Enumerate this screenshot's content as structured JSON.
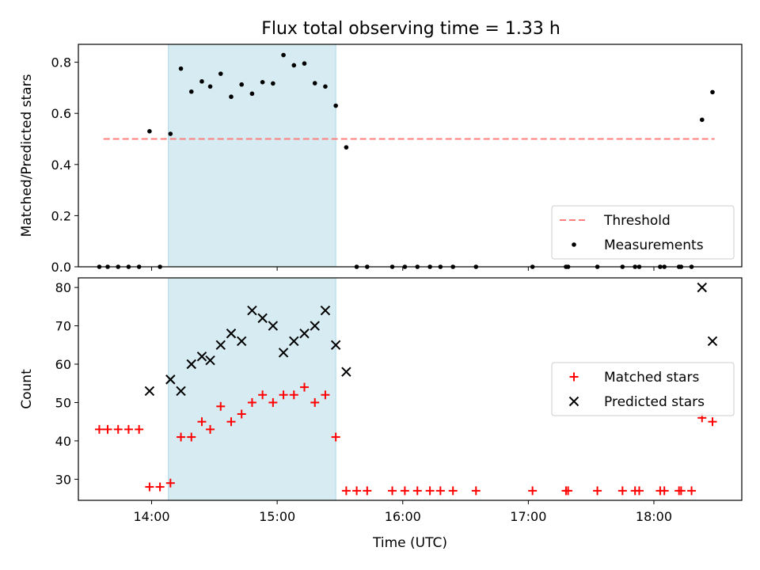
{
  "title": "Flux total observing time = 1.33 h",
  "colors": {
    "threshold": "#ff7f7f",
    "measurement": "#000000",
    "matched": "#ff0000",
    "predicted": "#000000",
    "span_fill": "#add8e6"
  },
  "chart_data": [
    {
      "type": "scatter",
      "panel": "top",
      "title": "Flux total observing time = 1.33 h",
      "xlabel": "",
      "ylabel": "Matched/Predicted stars",
      "xlim": [
        "13:25",
        "18:42"
      ],
      "ylim": [
        0.0,
        0.87
      ],
      "yticks": [
        "0.0",
        "0.2",
        "0.4",
        "0.6",
        "0.8"
      ],
      "legend_position": "lower right",
      "highlight_span": [
        "14:08",
        "15:28"
      ],
      "threshold": {
        "name": "Threshold",
        "value": 0.5,
        "x_range": [
          "13:37",
          "18:29"
        ]
      },
      "series": [
        {
          "name": "Measurements",
          "marker": "dot",
          "points": [
            [
              "13:35",
              0.0
            ],
            [
              "13:39",
              0.0
            ],
            [
              "13:44",
              0.0
            ],
            [
              "13:49",
              0.0
            ],
            [
              "13:54",
              0.0
            ],
            [
              "13:59",
              0.53
            ],
            [
              "14:04",
              0.0
            ],
            [
              "14:09",
              0.52
            ],
            [
              "14:14",
              0.775
            ],
            [
              "14:19",
              0.685
            ],
            [
              "14:24",
              0.725
            ],
            [
              "14:28",
              0.705
            ],
            [
              "14:33",
              0.755
            ],
            [
              "14:38",
              0.665
            ],
            [
              "14:43",
              0.713
            ],
            [
              "14:48",
              0.677
            ],
            [
              "14:53",
              0.722
            ],
            [
              "14:58",
              0.717
            ],
            [
              "15:03",
              0.828
            ],
            [
              "15:08",
              0.788
            ],
            [
              "15:13",
              0.795
            ],
            [
              "15:18",
              0.718
            ],
            [
              "15:23",
              0.705
            ],
            [
              "15:28",
              0.63
            ],
            [
              "15:33",
              0.467
            ],
            [
              "15:38",
              0.0
            ],
            [
              "15:43",
              0.0
            ],
            [
              "15:55",
              0.0
            ],
            [
              "16:01",
              0.0
            ],
            [
              "16:07",
              0.0
            ],
            [
              "16:13",
              0.0
            ],
            [
              "16:18",
              0.0
            ],
            [
              "16:24",
              0.0
            ],
            [
              "16:35",
              0.0
            ],
            [
              "17:02",
              0.0
            ],
            [
              "17:18",
              0.0
            ],
            [
              "17:19",
              0.0
            ],
            [
              "17:33",
              0.0
            ],
            [
              "17:45",
              0.0
            ],
            [
              "17:51",
              0.0
            ],
            [
              "17:53",
              0.0
            ],
            [
              "18:03",
              0.0
            ],
            [
              "18:05",
              0.0
            ],
            [
              "18:12",
              0.0
            ],
            [
              "18:13",
              0.0
            ],
            [
              "18:18",
              0.0
            ],
            [
              "18:23",
              0.575
            ],
            [
              "18:28",
              0.683
            ]
          ]
        }
      ]
    },
    {
      "type": "scatter",
      "panel": "bottom",
      "xlabel": "Time (UTC)",
      "ylabel": "Count",
      "xlim": [
        "13:25",
        "18:42"
      ],
      "ylim": [
        24.5,
        82.5
      ],
      "yticks": [
        "30",
        "40",
        "50",
        "60",
        "70",
        "80"
      ],
      "xticks": [
        "14:00",
        "15:00",
        "16:00",
        "17:00",
        "18:00"
      ],
      "legend_position": "center right",
      "highlight_span": [
        "14:08",
        "15:28"
      ],
      "series": [
        {
          "name": "Matched stars",
          "marker": "plus",
          "points": [
            [
              "13:35",
              43
            ],
            [
              "13:39",
              43
            ],
            [
              "13:44",
              43
            ],
            [
              "13:49",
              43
            ],
            [
              "13:54",
              43
            ],
            [
              "13:59",
              28
            ],
            [
              "14:04",
              28
            ],
            [
              "14:09",
              29
            ],
            [
              "14:14",
              41
            ],
            [
              "14:19",
              41
            ],
            [
              "14:24",
              45
            ],
            [
              "14:28",
              43
            ],
            [
              "14:33",
              49
            ],
            [
              "14:38",
              45
            ],
            [
              "14:43",
              47
            ],
            [
              "14:48",
              50
            ],
            [
              "14:53",
              52
            ],
            [
              "14:58",
              50
            ],
            [
              "15:03",
              52
            ],
            [
              "15:08",
              52
            ],
            [
              "15:13",
              54
            ],
            [
              "15:18",
              50
            ],
            [
              "15:23",
              52
            ],
            [
              "15:28",
              41
            ],
            [
              "15:33",
              27
            ],
            [
              "15:38",
              27
            ],
            [
              "15:43",
              27
            ],
            [
              "15:55",
              27
            ],
            [
              "16:01",
              27
            ],
            [
              "16:07",
              27
            ],
            [
              "16:13",
              27
            ],
            [
              "16:18",
              27
            ],
            [
              "16:24",
              27
            ],
            [
              "16:35",
              27
            ],
            [
              "17:02",
              27
            ],
            [
              "17:18",
              27
            ],
            [
              "17:19",
              27
            ],
            [
              "17:33",
              27
            ],
            [
              "17:45",
              27
            ],
            [
              "17:51",
              27
            ],
            [
              "17:53",
              27
            ],
            [
              "18:03",
              27
            ],
            [
              "18:05",
              27
            ],
            [
              "18:12",
              27
            ],
            [
              "18:13",
              27
            ],
            [
              "18:18",
              27
            ],
            [
              "18:23",
              46
            ],
            [
              "18:28",
              45
            ]
          ]
        },
        {
          "name": "Predicted stars",
          "marker": "x",
          "points": [
            [
              "13:59",
              53
            ],
            [
              "14:09",
              56
            ],
            [
              "14:14",
              53
            ],
            [
              "14:19",
              60
            ],
            [
              "14:24",
              62
            ],
            [
              "14:28",
              61
            ],
            [
              "14:33",
              65
            ],
            [
              "14:38",
              68
            ],
            [
              "14:43",
              66
            ],
            [
              "14:48",
              74
            ],
            [
              "14:53",
              72
            ],
            [
              "14:58",
              70
            ],
            [
              "15:03",
              63
            ],
            [
              "15:08",
              66
            ],
            [
              "15:13",
              68
            ],
            [
              "15:18",
              70
            ],
            [
              "15:23",
              74
            ],
            [
              "15:28",
              65
            ],
            [
              "15:33",
              58
            ],
            [
              "18:23",
              80
            ],
            [
              "18:28",
              66
            ]
          ]
        }
      ]
    }
  ]
}
